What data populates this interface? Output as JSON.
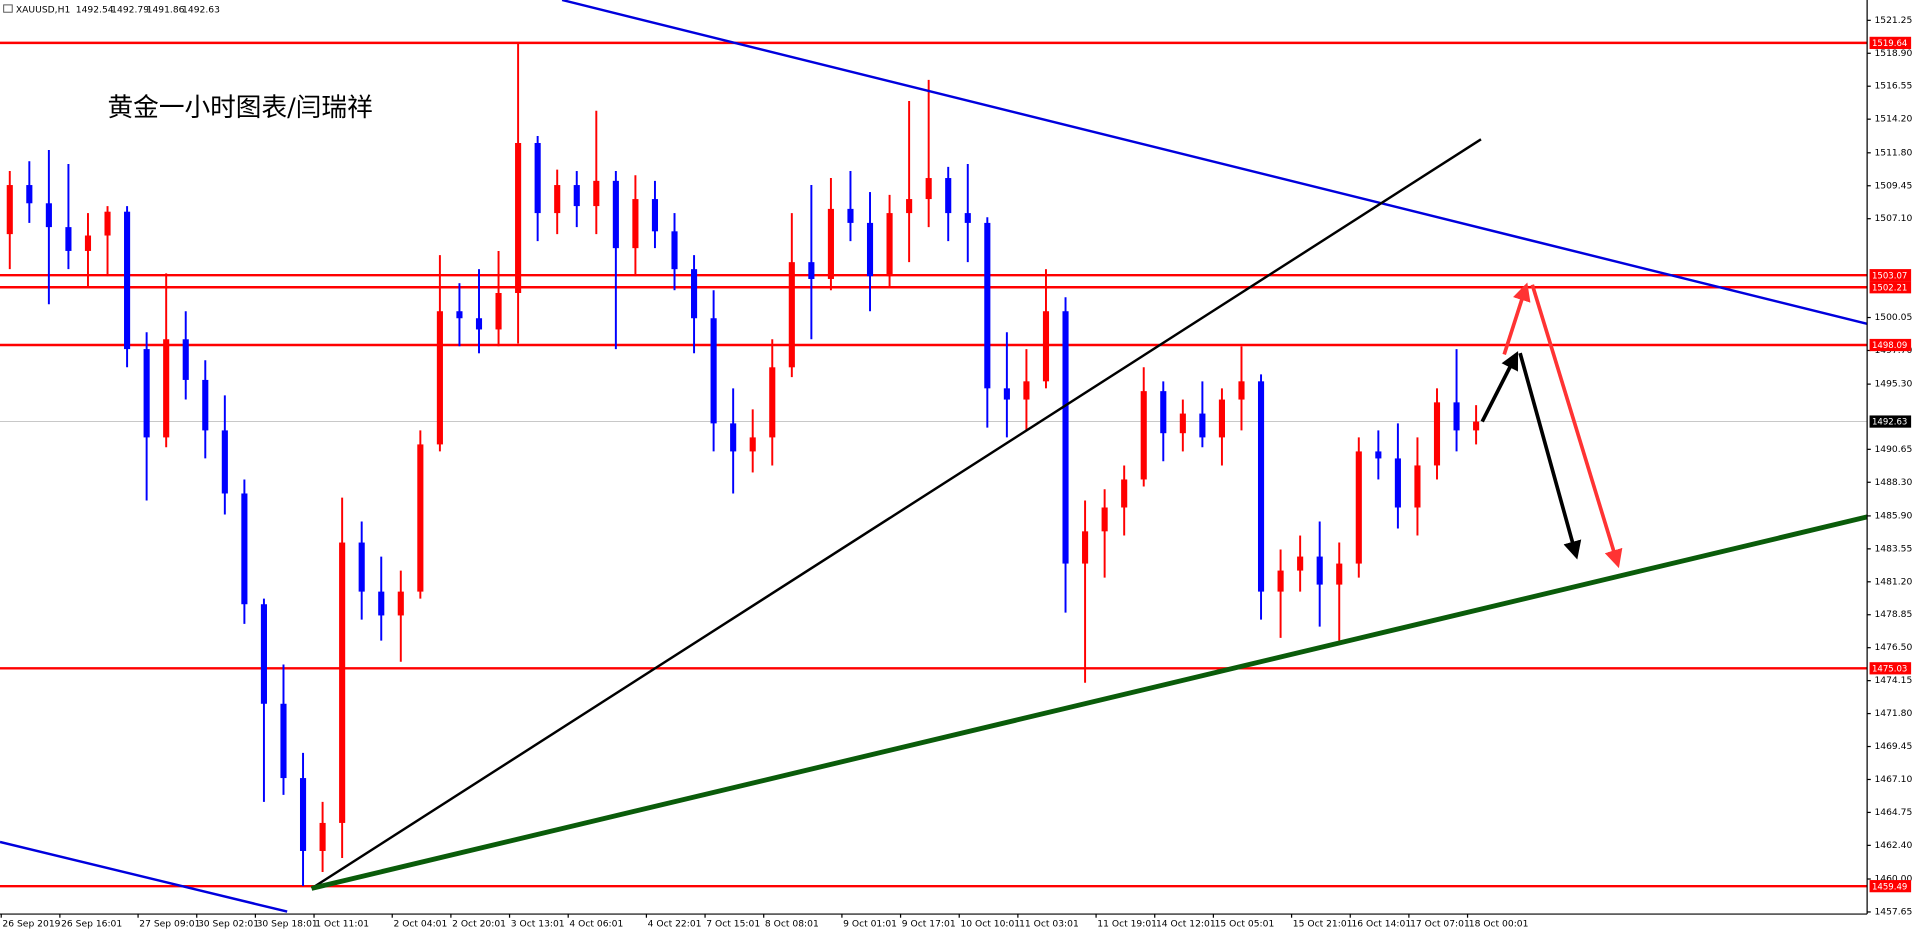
{
  "chart_data": {
    "type": "candlestick",
    "title": "黄金一小时图表/闫瑞祥",
    "symbol": "XAUUSD,H1",
    "last_bar": [
      1492.54,
      1492.79,
      1491.86,
      1492.63
    ],
    "up_color": "#ff0000",
    "down_color": "#0000ff",
    "level_color": "#ff0000",
    "levels": [
      1519.64,
      1503.07,
      1502.21,
      1498.09,
      1475.03,
      1459.49
    ],
    "ylim": [
      1457.5,
      1522.7
    ],
    "yticks": [
      {
        "value": 1521.25,
        "label": "1521.25"
      },
      {
        "value": 1518.9,
        "label": "1518.90"
      },
      1516.55,
      {
        "value": 1514.2,
        "label": "1514.20"
      },
      {
        "value": 1511.8,
        "label": "1511.80"
      },
      1509.45,
      {
        "value": 1507.1,
        "label": "1507.10"
      },
      1500.05,
      {
        "value": 1497.7,
        "label": "1497.70"
      },
      {
        "value": 1495.3,
        "label": "1495.30"
      },
      1490.65,
      {
        "value": 1488.3,
        "label": "1488.30"
      },
      {
        "value": 1485.9,
        "label": "1485.90"
      },
      1483.55,
      {
        "value": 1481.2,
        "label": "1481.20"
      },
      1478.85,
      {
        "value": 1476.5,
        "label": "1476.50"
      },
      1474.15,
      {
        "value": 1471.8,
        "label": "1471.80"
      },
      1469.45,
      {
        "value": 1467.1,
        "label": "1467.10"
      },
      1464.75,
      {
        "value": 1462.4,
        "label": "1462.40"
      },
      {
        "value": 1460,
        "label": "1460.00"
      },
      1457.65
    ],
    "categories": [
      "26 Sep 2019",
      null,
      null,
      "26 Sep 16:01",
      null,
      null,
      null,
      "27 Sep 09:01",
      null,
      null,
      "30 Sep 02:01",
      null,
      null,
      "30 Sep 18:01",
      null,
      null,
      "1 Oct 11:01",
      null,
      null,
      null,
      "2 Oct 04:01",
      null,
      null,
      "2 Oct 20:01",
      null,
      null,
      "3 Oct 13:01",
      null,
      null,
      "4 Oct 06:01",
      null,
      null,
      null,
      "4 Oct 22:01",
      null,
      null,
      "7 Oct 15:01",
      null,
      null,
      "8 Oct 08:01",
      null,
      null,
      null,
      "9 Oct 01:01",
      null,
      null,
      "9 Oct 17:01",
      null,
      null,
      "10 Oct 10:01",
      null,
      null,
      "11 Oct 03:01",
      null,
      null,
      null,
      "11 Oct 19:01",
      null,
      null,
      "14 Oct 12:01",
      null,
      null,
      "15 Oct 05:01",
      null,
      null,
      null,
      "15 Oct 21:01",
      null,
      null,
      "16 Oct 14:01",
      null,
      null,
      "17 Oct 07:01",
      null,
      null,
      "18 Oct 00:01"
    ],
    "open": [
      1506.0,
      1509.5,
      1508.2,
      1506.5,
      1504.8,
      1505.9,
      1507.6,
      1497.8,
      1491.5,
      1498.5,
      1495.6,
      1492.0,
      1487.5,
      1479.6,
      1472.5,
      1467.2,
      1462.0,
      1464.0,
      1484.0,
      1480.5,
      1478.8,
      1480.5,
      1491.0,
      1500.5,
      1500.0,
      1499.2,
      1501.8,
      1512.5,
      1507.5,
      1509.5,
      1508.0,
      1509.8,
      1505.0,
      1508.5,
      1506.2,
      1503.5,
      1500.0,
      1492.5,
      1490.5,
      1491.5,
      1496.5,
      1504.0,
      1502.8,
      1507.8,
      1506.8,
      1503.0,
      1507.5,
      1508.5,
      1510.0,
      1507.5,
      1506.8,
      1495.0,
      1494.2,
      1495.5,
      1500.5,
      1482.5,
      1484.8,
      1486.5,
      1488.5,
      1494.8,
      1491.8,
      1493.2,
      1491.5,
      1494.2,
      1495.5,
      1480.5,
      1482.0,
      1483.0,
      1481.0,
      1482.5,
      1490.5,
      1490.0,
      1486.5,
      1489.5,
      1494.0,
      1492.0
    ],
    "high": [
      1510.5,
      1511.2,
      1512.0,
      1511.0,
      1507.5,
      1508.0,
      1508.0,
      1499.0,
      1503.2,
      1500.5,
      1497.0,
      1494.5,
      1488.5,
      1480.0,
      1475.3,
      1469.0,
      1465.5,
      1487.2,
      1485.5,
      1483.0,
      1482.0,
      1492.0,
      1504.5,
      1502.5,
      1503.5,
      1504.8,
      1519.6,
      1513.0,
      1510.6,
      1510.5,
      1514.8,
      1510.5,
      1510.2,
      1509.8,
      1507.5,
      1504.5,
      1502.0,
      1495.0,
      1493.5,
      1498.5,
      1507.5,
      1509.5,
      1510.0,
      1510.5,
      1509.0,
      1508.8,
      1515.5,
      1517.0,
      1510.8,
      1511.0,
      1507.2,
      1499.0,
      1497.8,
      1503.5,
      1501.5,
      1487.0,
      1487.8,
      1489.5,
      1496.5,
      1495.5,
      1494.2,
      1495.5,
      1495.0,
      1498.0,
      1496.0,
      1483.5,
      1484.5,
      1485.5,
      1484.0,
      1491.5,
      1492.0,
      1492.5,
      1491.5,
      1495.0,
      1497.8,
      1493.8
    ],
    "low": [
      1503.5,
      1506.8,
      1501.0,
      1503.5,
      1502.2,
      1503.0,
      1496.5,
      1487.0,
      1490.8,
      1494.2,
      1490.0,
      1486.0,
      1478.2,
      1465.5,
      1466.0,
      1459.5,
      1460.5,
      1461.5,
      1478.5,
      1477.0,
      1475.5,
      1480.0,
      1490.5,
      1498.0,
      1497.5,
      1498.0,
      1498.2,
      1505.5,
      1506.0,
      1506.5,
      1506.0,
      1497.8,
      1503.0,
      1505.0,
      1502.0,
      1497.5,
      1490.5,
      1487.5,
      1489.0,
      1489.5,
      1495.8,
      1498.5,
      1502.0,
      1505.5,
      1500.5,
      1502.2,
      1504.0,
      1506.5,
      1505.5,
      1504.0,
      1492.2,
      1491.5,
      1492.0,
      1495.0,
      1479.0,
      1474.0,
      1481.5,
      1484.5,
      1488.0,
      1489.8,
      1490.5,
      1490.8,
      1489.5,
      1492.0,
      1478.5,
      1477.2,
      1480.5,
      1478.0,
      1477.0,
      1481.5,
      1488.5,
      1485.0,
      1484.5,
      1488.5,
      1490.5,
      1491.0
    ],
    "close": [
      1509.5,
      1508.2,
      1506.5,
      1504.8,
      1505.9,
      1507.6,
      1497.8,
      1491.5,
      1498.5,
      1495.6,
      1492.0,
      1487.5,
      1479.6,
      1472.5,
      1467.2,
      1462.0,
      1464.0,
      1484.0,
      1480.5,
      1478.8,
      1480.5,
      1491.0,
      1500.5,
      1500.0,
      1499.2,
      1501.8,
      1512.5,
      1507.5,
      1509.5,
      1508.0,
      1509.8,
      1505.0,
      1508.5,
      1506.2,
      1503.5,
      1500.0,
      1492.5,
      1490.5,
      1491.5,
      1496.5,
      1504.0,
      1502.8,
      1507.8,
      1506.8,
      1503.0,
      1507.5,
      1508.5,
      1510.0,
      1507.5,
      1506.8,
      1495.0,
      1494.2,
      1495.5,
      1500.5,
      1482.5,
      1484.8,
      1486.5,
      1488.5,
      1494.8,
      1491.8,
      1493.2,
      1491.5,
      1494.2,
      1495.5,
      1480.5,
      1482.0,
      1483.0,
      1481.0,
      1482.5,
      1490.5,
      1490.0,
      1486.5,
      1489.5,
      1494.0,
      1492.0,
      1492.63
    ]
  }
}
